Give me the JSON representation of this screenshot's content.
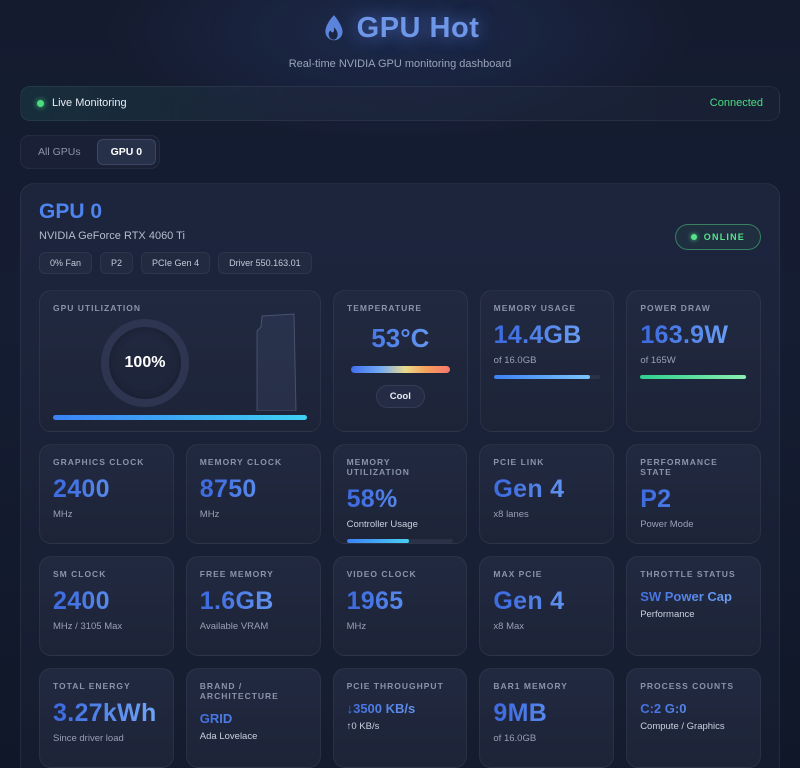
{
  "page": {
    "title": "GPU Hot",
    "subtitle": "Real-time NVIDIA GPU monitoring dashboard"
  },
  "status_bar": {
    "label": "Live Monitoring",
    "connection": "Connected"
  },
  "tabs": [
    {
      "label": "All GPUs"
    },
    {
      "label": "GPU 0"
    }
  ],
  "gpu": {
    "name": "GPU 0",
    "model": "NVIDIA GeForce RTX 4060 Ti",
    "online_label": "ONLINE",
    "pills": [
      {
        "text": "0%  Fan"
      },
      {
        "text": "P2"
      },
      {
        "text": "PCIe Gen  4"
      },
      {
        "text": "Driver 550.163.01"
      }
    ]
  },
  "cards": {
    "utilization": {
      "label": "GPU UTILIZATION",
      "value": "100%",
      "percent": 100
    },
    "temperature": {
      "label": "TEMPERATURE",
      "value": "53°C",
      "badge": "Cool"
    },
    "memory": {
      "label": "MEMORY USAGE",
      "value": "14.4GB",
      "sub": "of 16.0GB",
      "percent": 90
    },
    "power": {
      "label": "POWER DRAW",
      "value": "163.9W",
      "sub": "of 165W",
      "percent": 99
    },
    "graphics_clock": {
      "label": "GRAPHICS CLOCK",
      "value": "2400",
      "sub": "MHz"
    },
    "memory_clock": {
      "label": "MEMORY CLOCK",
      "value": "8750",
      "sub": "MHz"
    },
    "memory_util": {
      "label": "MEMORY UTILIZATION",
      "value": "58%",
      "sub": "Controller Usage",
      "percent": 58
    },
    "pcie_link": {
      "label": "PCIE LINK",
      "value": "Gen 4",
      "sub": "x8 lanes"
    },
    "perf_state": {
      "label": "PERFORMANCE STATE",
      "value": "P2",
      "sub": "Power Mode"
    },
    "sm_clock": {
      "label": "SM CLOCK",
      "value": "2400",
      "sub": "MHz / 3105 Max"
    },
    "free_memory": {
      "label": "FREE MEMORY",
      "value": "1.6GB",
      "sub": "Available VRAM"
    },
    "video_clock": {
      "label": "VIDEO CLOCK",
      "value": "1965",
      "sub": "MHz"
    },
    "max_pcie": {
      "label": "MAX PCIE",
      "value": "Gen 4",
      "sub": "x8 Max"
    },
    "throttle": {
      "label": "THROTTLE STATUS",
      "value": "SW Power Cap",
      "sub": "Performance"
    },
    "total_energy": {
      "label": "TOTAL ENERGY",
      "value": "3.27kWh",
      "sub": "Since driver load"
    },
    "brand": {
      "label": "BRAND / ARCHITECTURE",
      "value": "GRID",
      "sub": "Ada Lovelace"
    },
    "pcie_throughput": {
      "label": "PCIE THROUGHPUT",
      "value": "↓3500 KB/s",
      "sub": "↑0 KB/s"
    },
    "bar1": {
      "label": "BAR1 MEMORY",
      "value": "9MB",
      "sub": "of 16.0GB"
    },
    "process_counts": {
      "label": "PROCESS COUNTS",
      "value": "C:2 G:0",
      "sub": "Compute / Graphics"
    }
  },
  "colors": {
    "accent_blue": "#4f82ec",
    "status_green": "#4ade80",
    "card_bg": "#1d2438"
  }
}
